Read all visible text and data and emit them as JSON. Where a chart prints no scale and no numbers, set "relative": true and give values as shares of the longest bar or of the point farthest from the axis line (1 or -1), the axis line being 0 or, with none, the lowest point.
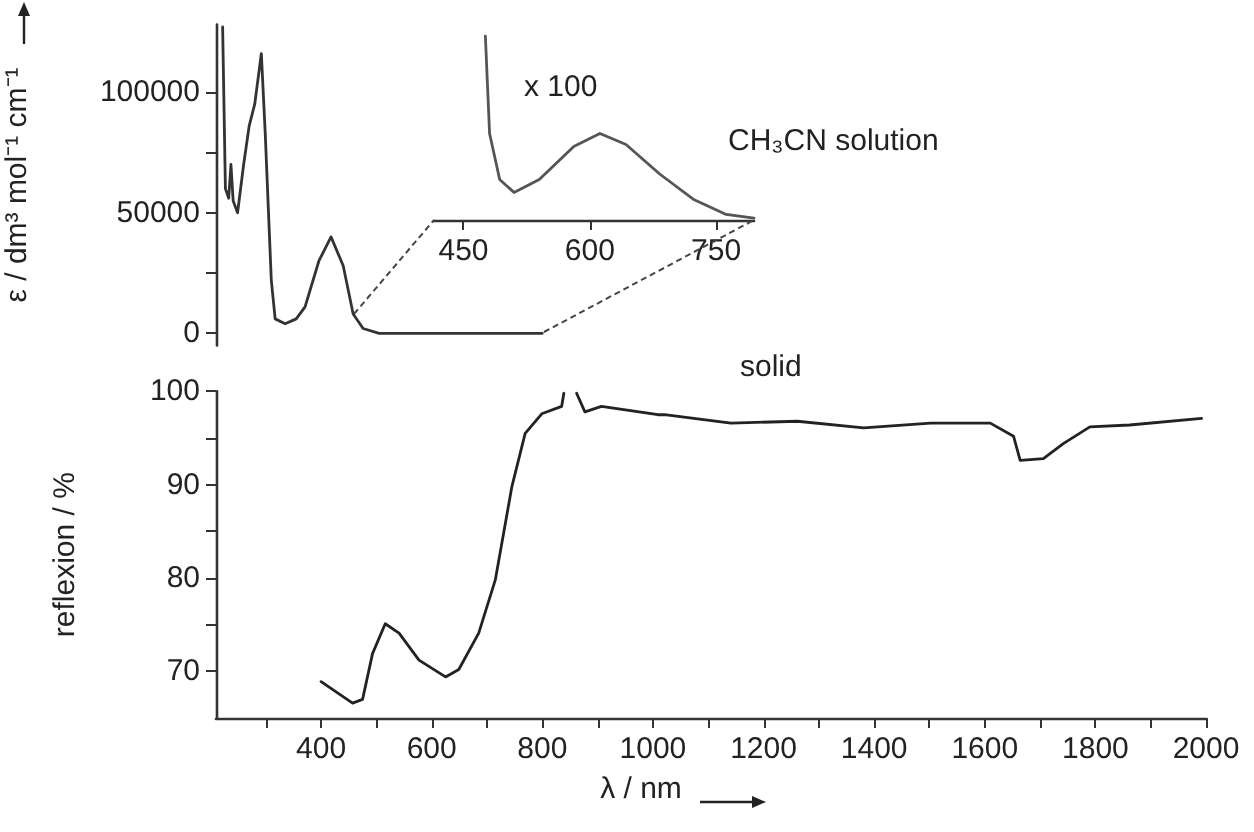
{
  "chart_data": [
    {
      "type": "line",
      "ylabel": "ε / dm³ mol⁻¹ cm⁻¹",
      "xlim": [
        210,
        2000
      ],
      "ylim": [
        -5000,
        128000
      ],
      "yticks": [
        0,
        {
          "value": 25000,
          "label": null
        },
        50000,
        {
          "value": 75000,
          "label": null
        },
        100000
      ],
      "tick_labels": "y",
      "marker": "none",
      "color": "#333333",
      "x": [
        222,
        227,
        233,
        237,
        241,
        249,
        260,
        270,
        280,
        292,
        299,
        310,
        317,
        335,
        355,
        371,
        396,
        418,
        440,
        458,
        476,
        505,
        600,
        700,
        800
      ],
      "values": [
        127000,
        60000,
        56000,
        70000,
        55000,
        50000,
        70000,
        86000,
        95000,
        116000,
        83000,
        22000,
        6000,
        4000,
        6000,
        11000,
        30000,
        40000,
        28000,
        8000,
        2000,
        0,
        0,
        0,
        0
      ],
      "annotations": [
        "CH₃CN solution"
      ]
    },
    {
      "type": "line",
      "relative": true,
      "xlim": [
        415,
        795
      ],
      "xticks": [
        450,
        600,
        750
      ],
      "tick_labels": "x",
      "marker": "none",
      "color": "#555555",
      "x": [
        476,
        481,
        493,
        510,
        540,
        581,
        612,
        643,
        683,
        724,
        762,
        795
      ],
      "values": [
        1,
        0.47,
        0.22,
        0.15,
        0.22,
        0.4,
        0.47,
        0.41,
        0.25,
        0.11,
        0.03,
        0.01
      ],
      "annotations": [
        "x 100"
      ]
    },
    {
      "type": "line",
      "xlabel": "λ / nm",
      "ylabel": "reflexion / %",
      "xlim": [
        210,
        2000
      ],
      "ylim": [
        65,
        100
      ],
      "marker": "none",
      "color": "#222222",
      "xticks": [
        {
          "value": 300,
          "label": null
        },
        400,
        {
          "value": 500,
          "label": null
        },
        600,
        {
          "value": 700,
          "label": null
        },
        800,
        {
          "value": 900,
          "label": null
        },
        1000,
        {
          "value": 1100,
          "label": null
        },
        1200,
        {
          "value": 1300,
          "label": null
        },
        1400,
        {
          "value": 1500,
          "label": null
        },
        1600,
        {
          "value": 1700,
          "label": null
        },
        1800,
        {
          "value": 1900,
          "label": null
        },
        2000
      ],
      "yticks": [
        70,
        {
          "value": 75,
          "label": null
        },
        80,
        {
          "value": 85,
          "label": null
        },
        90,
        {
          "value": 95,
          "label": null
        },
        100
      ],
      "x": [
        400,
        457,
        475,
        493,
        516,
        541,
        577,
        625,
        649,
        685,
        715,
        745,
        769,
        799,
        835,
        839,
        850,
        862,
        877,
        907,
        1009,
        1021,
        1141,
        1261,
        1381,
        1502,
        1610,
        1652,
        1664,
        1706,
        1742,
        1790,
        1862,
        1992
      ],
      "values": [
        68.9,
        66.6,
        67,
        71.9,
        75.1,
        74.1,
        71.2,
        69.4,
        70.2,
        74.1,
        79.8,
        89.8,
        95.5,
        97.6,
        98.4,
        99.8,
        null,
        99.8,
        97.8,
        98.4,
        97.5,
        97.5,
        96.6,
        96.8,
        96.1,
        96.6,
        96.6,
        95.2,
        92.6,
        92.8,
        94.4,
        96.2,
        96.4,
        97.1
      ],
      "annotations": [
        "solid"
      ]
    }
  ]
}
